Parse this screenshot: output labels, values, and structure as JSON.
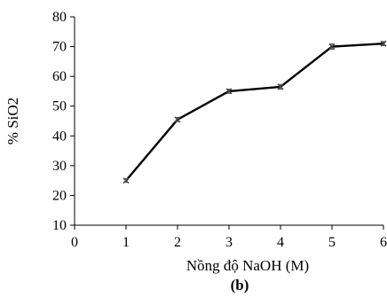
{
  "chart_data": {
    "type": "line",
    "title": "",
    "xlabel": "Nồng độ NaOH (M)",
    "ylabel": "% SiO2",
    "panel_label": "(b)",
    "xlim": [
      0,
      6
    ],
    "ylim": [
      10,
      80
    ],
    "x_ticks": [
      0,
      1,
      2,
      3,
      4,
      5,
      6
    ],
    "y_ticks": [
      10,
      20,
      30,
      40,
      50,
      60,
      70,
      80
    ],
    "grid": false,
    "legend": "none",
    "series": [
      {
        "x": [
          1,
          2,
          3,
          4,
          5,
          6
        ],
        "y": [
          25,
          45.5,
          55,
          56.5,
          70,
          71
        ],
        "error": [
          0.6,
          0.7,
          0.7,
          0.8,
          0.9,
          0.7
        ],
        "color": "#000000",
        "marker": "x"
      }
    ]
  }
}
